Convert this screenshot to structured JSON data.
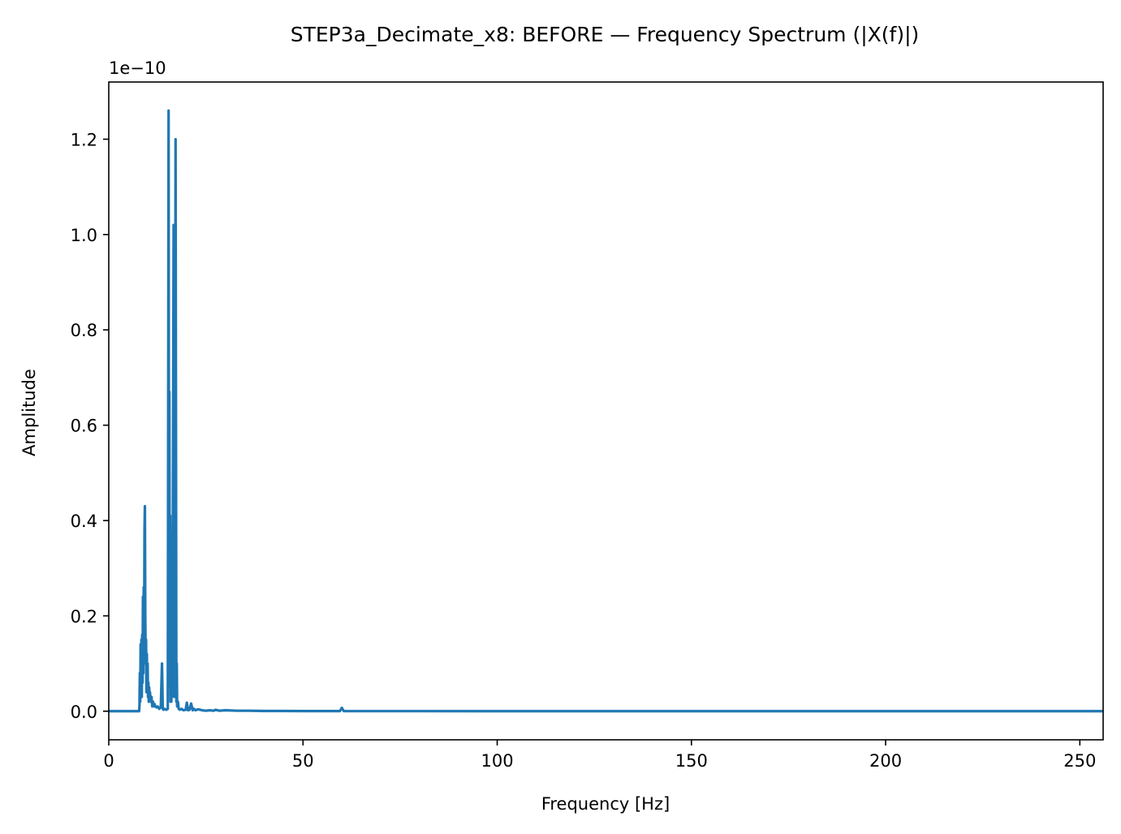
{
  "chart_data": {
    "type": "line",
    "title": "STEP3a_Decimate_x8: BEFORE — Frequency Spectrum (|X(f)|)",
    "xlabel": "Frequency [Hz]",
    "ylabel": "Amplitude",
    "y_offset_label": "1e−10",
    "xlim": [
      0,
      256
    ],
    "ylim": [
      -0.06,
      1.32
    ],
    "xticks": [
      0,
      50,
      100,
      150,
      200,
      250
    ],
    "xtick_labels": [
      "0",
      "50",
      "100",
      "150",
      "200",
      "250"
    ],
    "yticks": [
      0.0,
      0.2,
      0.4,
      0.6,
      0.8,
      1.0,
      1.2
    ],
    "ytick_labels": [
      "0.0",
      "0.2",
      "0.4",
      "0.6",
      "0.8",
      "1.0",
      "1.2"
    ],
    "grid": false,
    "series": [
      {
        "color": "#1f77b4",
        "x": [
          0,
          7.8,
          7.9,
          8.0,
          8.1,
          8.2,
          8.3,
          8.4,
          8.5,
          8.6,
          8.7,
          8.8,
          8.9,
          9.0,
          9.1,
          9.2,
          9.3,
          9.4,
          9.5,
          9.6,
          9.7,
          9.8,
          9.9,
          10.0,
          10.1,
          10.2,
          10.3,
          10.4,
          10.5,
          10.6,
          10.8,
          11.0,
          11.2,
          11.4,
          11.6,
          11.8,
          12.0,
          12.3,
          12.6,
          13.0,
          13.4,
          13.7,
          13.9,
          14.1,
          14.4,
          14.8,
          15.2,
          15.4,
          15.5,
          15.6,
          15.7,
          15.8,
          15.9,
          16.0,
          16.1,
          16.3,
          16.5,
          16.7,
          16.8,
          17.0,
          17.2,
          17.4,
          17.5,
          17.6,
          17.8,
          18.0,
          18.3,
          18.7,
          19.2,
          19.8,
          20.1,
          20.4,
          20.8,
          21.2,
          21.6,
          21.9,
          22.3,
          23.0,
          24.0,
          25.0,
          26.0,
          27.0,
          27.5,
          28.5,
          30.0,
          33.0,
          36.0,
          40.0,
          45.0,
          50.0,
          55.0,
          59.5,
          59.8,
          60.0,
          60.2,
          60.5,
          65.0,
          80.0,
          100.0,
          150.0,
          200.0,
          256.0
        ],
        "y": [
          0,
          0,
          0.01,
          0.08,
          0.02,
          0.14,
          0.05,
          0.15,
          0.03,
          0.16,
          0.06,
          0.24,
          0.08,
          0.26,
          0.12,
          0.38,
          0.43,
          0.2,
          0.1,
          0.15,
          0.04,
          0.12,
          0.05,
          0.1,
          0.03,
          0.06,
          0.02,
          0.05,
          0.03,
          0.04,
          0.02,
          0.03,
          0.01,
          0.02,
          0.01,
          0.015,
          0.01,
          0.008,
          0.01,
          0.005,
          0.008,
          0.1,
          0.005,
          0.003,
          0.005,
          0.003,
          0.005,
          1.26,
          0.4,
          0.67,
          0.05,
          0.41,
          0.02,
          0.03,
          0.02,
          0.1,
          0.4,
          1.02,
          0.03,
          0.3,
          1.2,
          0.02,
          0.1,
          0.01,
          0.02,
          0.005,
          0.003,
          0.005,
          0.002,
          0.003,
          0.018,
          0.002,
          0.003,
          0.016,
          0.002,
          0.005,
          0.002,
          0.004,
          0.002,
          0.001,
          0.002,
          0.001,
          0.003,
          0.001,
          0.002,
          0.001,
          0.001,
          0.0005,
          0.0005,
          0.0003,
          0.0003,
          0.0003,
          0.004,
          0.007,
          0.004,
          0.0003,
          0.0002,
          0.0002,
          0.0001,
          0.0001,
          0.0001,
          0.0001
        ]
      }
    ]
  }
}
